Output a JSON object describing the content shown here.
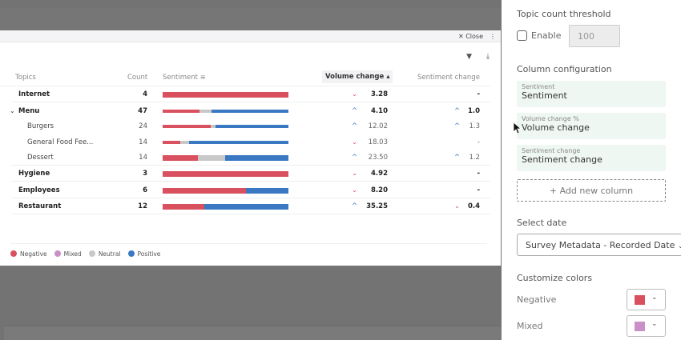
{
  "modal": {
    "close_label": "Close"
  },
  "table": {
    "headers": {
      "topics": "Topics",
      "count": "Count",
      "sentiment": "Sentiment",
      "volume_change": "Volume change",
      "sentiment_change": "Sentiment change"
    },
    "rows": [
      {
        "topic": "Internet",
        "count": "4",
        "level": 0,
        "sentiment": {
          "negative": 1.0,
          "neutral": 0,
          "positive": 0
        },
        "volume_dir": "down",
        "volume": "3.28",
        "sent_dir": "",
        "sent_change": "-"
      },
      {
        "topic": "Menu",
        "count": "47",
        "level": 0,
        "expanded": true,
        "sentiment": {
          "negative": 0.29,
          "neutral": 0.1,
          "positive": 0.61
        },
        "volume_dir": "up",
        "volume": "4.10",
        "sent_dir": "up",
        "sent_change": "1.0"
      },
      {
        "topic": "Burgers",
        "count": "24",
        "level": 1,
        "sentiment": {
          "negative": 0.38,
          "neutral": 0.04,
          "positive": 0.58
        },
        "volume_dir": "up",
        "volume": "12.02",
        "sent_dir": "up",
        "sent_change": "1.3"
      },
      {
        "topic": "General Food Fee...",
        "count": "14",
        "level": 1,
        "sentiment": {
          "negative": 0.14,
          "neutral": 0.07,
          "positive": 0.79
        },
        "volume_dir": "down",
        "volume": "18.03",
        "sent_dir": "",
        "sent_change": "-"
      },
      {
        "topic": "Dessert",
        "count": "14",
        "level": 1,
        "sentiment": {
          "negative": 0.28,
          "neutral": 0.22,
          "positive": 0.5
        },
        "volume_dir": "up",
        "volume": "23.50",
        "sent_dir": "up",
        "sent_change": "1.2"
      },
      {
        "topic": "Hygiene",
        "count": "3",
        "level": 0,
        "sentiment": {
          "negative": 1.0,
          "neutral": 0,
          "positive": 0
        },
        "volume_dir": "down",
        "volume": "4.92",
        "sent_dir": "",
        "sent_change": "-"
      },
      {
        "topic": "Employees",
        "count": "6",
        "level": 0,
        "sentiment": {
          "negative": 0.66,
          "neutral": 0,
          "positive": 0.34
        },
        "volume_dir": "down",
        "volume": "8.20",
        "sent_dir": "",
        "sent_change": "-"
      },
      {
        "topic": "Restaurant",
        "count": "12",
        "level": 0,
        "sentiment": {
          "negative": 0.33,
          "neutral": 0,
          "positive": 0.67
        },
        "volume_dir": "up",
        "volume": "35.25",
        "sent_dir": "down",
        "sent_change": "0.4"
      }
    ]
  },
  "legend": [
    {
      "label": "Negative",
      "color": "#d9505e"
    },
    {
      "label": "Mixed",
      "color": "#c98fc9"
    },
    {
      "label": "Neutral",
      "color": "#c8c8c8"
    },
    {
      "label": "Positive",
      "color": "#3a78c4"
    }
  ],
  "colors": {
    "negative": "#d9505e",
    "mixed": "#c98fc9",
    "neutral": "#c8c8c8",
    "positive": "#3a78c4"
  },
  "panel": {
    "threshold_title": "Topic count threshold",
    "enable_label": "Enable",
    "threshold_value": "100",
    "column_title": "Column configuration",
    "columns": [
      {
        "label": "Sentiment",
        "value": "Sentiment"
      },
      {
        "label": "Volume change %",
        "value": "Volume change"
      },
      {
        "label": "Sentiment change",
        "value": "Sentiment change"
      }
    ],
    "add_column": "+ Add new column",
    "date_title": "Select date",
    "date_value": "Survey Metadata - Recorded Date",
    "colors_title": "Customize colors",
    "color_rows": [
      {
        "label": "Negative",
        "color": "#d9505e"
      },
      {
        "label": "Mixed",
        "color": "#c98fc9"
      }
    ]
  }
}
